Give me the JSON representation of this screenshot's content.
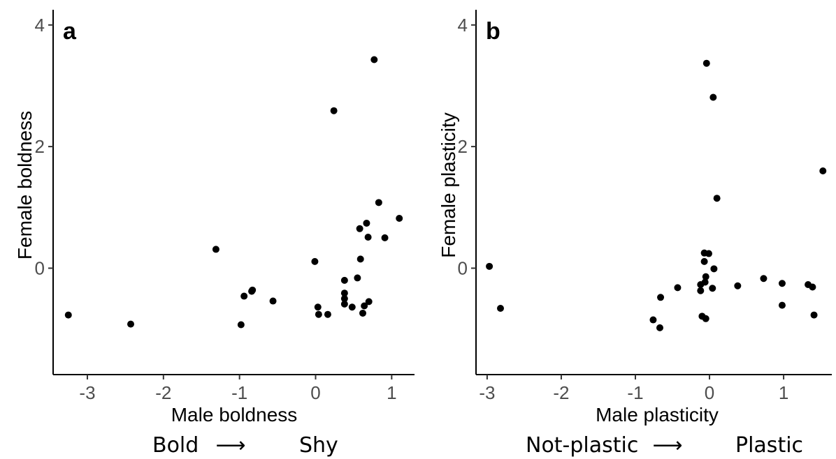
{
  "chart_data": [
    {
      "type": "scatter",
      "panel_label": "a",
      "xlabel": "Male boldness",
      "ylabel": "Female boldness",
      "caption_left": "Bold",
      "caption_arrow": "⟶",
      "caption_right": "Shy",
      "xlim": [
        -3.45,
        1.3
      ],
      "ylim": [
        -1.75,
        4.25
      ],
      "xticks": [
        -3,
        -2,
        -1,
        0,
        1
      ],
      "yticks": [
        0,
        2,
        4
      ],
      "grid": false,
      "points": [
        {
          "x": -3.25,
          "y": -0.77
        },
        {
          "x": -2.43,
          "y": -0.92
        },
        {
          "x": -1.31,
          "y": 0.31
        },
        {
          "x": -0.98,
          "y": -0.93
        },
        {
          "x": -0.94,
          "y": -0.46
        },
        {
          "x": -0.84,
          "y": -0.38
        },
        {
          "x": -0.83,
          "y": -0.36
        },
        {
          "x": -0.56,
          "y": -0.54
        },
        {
          "x": -0.01,
          "y": 0.11
        },
        {
          "x": 0.03,
          "y": -0.64
        },
        {
          "x": 0.04,
          "y": -0.76
        },
        {
          "x": 0.16,
          "y": -0.76
        },
        {
          "x": 0.24,
          "y": 2.59
        },
        {
          "x": 0.38,
          "y": -0.2
        },
        {
          "x": 0.38,
          "y": -0.41
        },
        {
          "x": 0.38,
          "y": -0.5
        },
        {
          "x": 0.38,
          "y": -0.59
        },
        {
          "x": 0.48,
          "y": -0.64
        },
        {
          "x": 0.55,
          "y": -0.16
        },
        {
          "x": 0.58,
          "y": 0.65
        },
        {
          "x": 0.59,
          "y": 0.15
        },
        {
          "x": 0.62,
          "y": -0.74
        },
        {
          "x": 0.64,
          "y": -0.62
        },
        {
          "x": 0.67,
          "y": 0.74
        },
        {
          "x": 0.69,
          "y": 0.51
        },
        {
          "x": 0.7,
          "y": -0.55
        },
        {
          "x": 0.77,
          "y": 3.43
        },
        {
          "x": 0.83,
          "y": 1.08
        },
        {
          "x": 0.91,
          "y": 0.5
        },
        {
          "x": 1.1,
          "y": 0.82
        }
      ]
    },
    {
      "type": "scatter",
      "panel_label": "b",
      "xlabel": "Male plasticity",
      "ylabel": "Female plasticity",
      "caption_left": "Not-plastic",
      "caption_arrow": "⟶",
      "caption_right": "Plastic",
      "xlim": [
        -3.15,
        1.65
      ],
      "ylim": [
        -1.75,
        4.25
      ],
      "xticks": [
        -3,
        -2,
        -1,
        0,
        1
      ],
      "yticks": [
        0,
        2,
        4
      ],
      "grid": false,
      "points": [
        {
          "x": -2.97,
          "y": 0.03
        },
        {
          "x": -2.82,
          "y": -0.66
        },
        {
          "x": -0.76,
          "y": -0.85
        },
        {
          "x": -0.67,
          "y": -0.98
        },
        {
          "x": -0.66,
          "y": -0.48
        },
        {
          "x": -0.43,
          "y": -0.32
        },
        {
          "x": -0.12,
          "y": -0.27
        },
        {
          "x": -0.12,
          "y": -0.37
        },
        {
          "x": -0.1,
          "y": -0.79
        },
        {
          "x": -0.07,
          "y": 0.25
        },
        {
          "x": -0.07,
          "y": 0.11
        },
        {
          "x": -0.06,
          "y": -0.23
        },
        {
          "x": -0.05,
          "y": -0.14
        },
        {
          "x": -0.05,
          "y": -0.83
        },
        {
          "x": -0.04,
          "y": 3.37
        },
        {
          "x": -0.01,
          "y": 0.24
        },
        {
          "x": 0.04,
          "y": -0.33
        },
        {
          "x": 0.05,
          "y": 2.81
        },
        {
          "x": 0.06,
          "y": -0.01
        },
        {
          "x": 0.1,
          "y": 1.15
        },
        {
          "x": 0.38,
          "y": -0.29
        },
        {
          "x": 0.73,
          "y": -0.17
        },
        {
          "x": 0.98,
          "y": -0.25
        },
        {
          "x": 0.98,
          "y": -0.61
        },
        {
          "x": 1.33,
          "y": -0.27
        },
        {
          "x": 1.39,
          "y": -0.31
        },
        {
          "x": 1.41,
          "y": -0.77
        },
        {
          "x": 1.53,
          "y": 1.6
        }
      ]
    }
  ]
}
